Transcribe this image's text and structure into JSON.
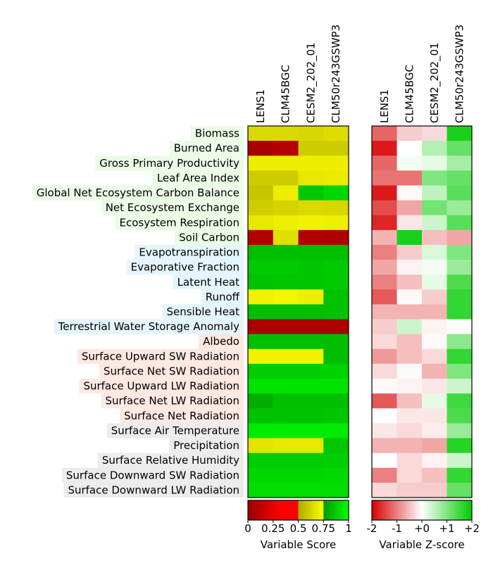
{
  "chart_data": [
    {
      "type": "heatmap",
      "title": "",
      "columns": [
        "LENS1",
        "CLM45BGC",
        "CESM2_202_01",
        "CLM50r243GSWP3"
      ],
      "rows": [
        {
          "label": "Biomass",
          "group": "ecosystem"
        },
        {
          "label": "Burned Area",
          "group": "ecosystem"
        },
        {
          "label": "Gross Primary Productivity",
          "group": "ecosystem"
        },
        {
          "label": "Leaf Area Index",
          "group": "ecosystem"
        },
        {
          "label": "Global Net Ecosystem Carbon Balance",
          "group": "ecosystem"
        },
        {
          "label": "Net Ecosystem Exchange",
          "group": "ecosystem"
        },
        {
          "label": "Ecosystem Respiration",
          "group": "ecosystem"
        },
        {
          "label": "Soil Carbon",
          "group": "ecosystem"
        },
        {
          "label": "Evapotranspiration",
          "group": "hydrology"
        },
        {
          "label": "Evaporative Fraction",
          "group": "hydrology"
        },
        {
          "label": "Latent Heat",
          "group": "hydrology"
        },
        {
          "label": "Runoff",
          "group": "hydrology"
        },
        {
          "label": "Sensible Heat",
          "group": "hydrology"
        },
        {
          "label": "Terrestrial Water Storage Anomaly",
          "group": "hydrology"
        },
        {
          "label": "Albedo",
          "group": "radiation"
        },
        {
          "label": "Surface Upward SW Radiation",
          "group": "radiation"
        },
        {
          "label": "Surface Net SW Radiation",
          "group": "radiation"
        },
        {
          "label": "Surface Upward LW Radiation",
          "group": "radiation"
        },
        {
          "label": "Surface Net LW Radiation",
          "group": "radiation"
        },
        {
          "label": "Surface Net Radiation",
          "group": "radiation"
        },
        {
          "label": "Surface Air Temperature",
          "group": "forcing"
        },
        {
          "label": "Precipitation",
          "group": "forcing"
        },
        {
          "label": "Surface Relative Humidity",
          "group": "forcing"
        },
        {
          "label": "Surface Downward SW Radiation",
          "group": "forcing"
        },
        {
          "label": "Surface Downward LW Radiation",
          "group": "forcing"
        }
      ],
      "group_colors": {
        "ecosystem": "#ecfbe6",
        "hydrology": "#e4f5fd",
        "radiation": "#fde8e2",
        "forcing": "#ececec"
      },
      "values": [
        [
          0.64,
          0.64,
          0.63,
          0.65
        ],
        [
          0.05,
          0.09,
          0.6,
          0.6
        ],
        [
          0.7,
          0.7,
          0.7,
          0.7
        ],
        [
          0.6,
          0.6,
          0.68,
          0.69
        ],
        [
          0.58,
          0.7,
          0.86,
          0.9
        ],
        [
          0.61,
          0.62,
          0.64,
          0.63
        ],
        [
          0.68,
          0.7,
          0.71,
          0.7
        ],
        [
          0.08,
          0.66,
          0.08,
          0.07
        ],
        [
          0.84,
          0.84,
          0.84,
          0.84
        ],
        [
          0.87,
          0.87,
          0.86,
          0.87
        ],
        [
          0.85,
          0.86,
          0.86,
          0.87
        ],
        [
          0.71,
          0.72,
          0.7,
          0.85
        ],
        [
          0.84,
          0.84,
          0.84,
          0.85
        ],
        [
          0.06,
          0.06,
          0.06,
          0.06
        ],
        [
          0.84,
          0.84,
          0.84,
          0.84
        ],
        [
          0.71,
          0.71,
          0.71,
          0.84
        ],
        [
          0.88,
          0.88,
          0.88,
          0.89
        ],
        [
          0.93,
          0.93,
          0.93,
          0.93
        ],
        [
          0.8,
          0.84,
          0.84,
          0.84
        ],
        [
          0.85,
          0.85,
          0.85,
          0.86
        ],
        [
          0.95,
          0.95,
          0.95,
          0.95
        ],
        [
          0.67,
          0.68,
          0.68,
          0.86
        ],
        [
          0.88,
          0.88,
          0.88,
          0.88
        ],
        [
          0.9,
          0.9,
          0.9,
          0.91
        ],
        [
          0.92,
          0.92,
          0.92,
          0.92
        ]
      ],
      "colorbar": {
        "label": "Variable Score",
        "ticks": [
          "0",
          "0.25",
          "0.5",
          "0.75",
          "1"
        ],
        "tick_values": [
          0,
          0.25,
          0.5,
          0.75,
          1.0
        ],
        "range": [
          0,
          1
        ],
        "stops": [
          {
            "v": 0.0,
            "c": "#990000"
          },
          {
            "v": 0.33,
            "c": "#ff0000"
          },
          {
            "v": 0.5,
            "c": "#ff0000"
          },
          {
            "v": 0.5,
            "c": "#aaaa00"
          },
          {
            "v": 0.75,
            "c": "#ffff00"
          },
          {
            "v": 0.75,
            "c": "#009900"
          },
          {
            "v": 1.0,
            "c": "#00ff00"
          }
        ]
      }
    },
    {
      "type": "heatmap",
      "title": "",
      "columns": [
        "LENS1",
        "CLM45BGC",
        "CESM2_202_01",
        "CLM50r243GSWP3"
      ],
      "values": [
        [
          -1.2,
          -0.4,
          -0.3,
          1.8
        ],
        [
          -1.8,
          0.0,
          0.6,
          1.2
        ],
        [
          -1.2,
          0.1,
          0.2,
          0.7
        ],
        [
          -1.1,
          -1.1,
          1.0,
          1.2
        ],
        [
          -1.8,
          -0.05,
          0.5,
          1.3
        ],
        [
          -1.4,
          -0.7,
          1.1,
          0.8
        ],
        [
          -1.7,
          -0.2,
          0.4,
          1.3
        ],
        [
          -0.6,
          1.8,
          -0.5,
          -0.7
        ],
        [
          -1.0,
          -0.4,
          0.3,
          1.0
        ],
        [
          -0.7,
          -0.1,
          0.1,
          0.8
        ],
        [
          -1.0,
          -0.5,
          0.2,
          1.4
        ],
        [
          -1.3,
          -0.05,
          -0.4,
          1.6
        ],
        [
          -0.6,
          -0.6,
          -0.6,
          1.6
        ],
        [
          -0.4,
          0.4,
          -0.1,
          0.02
        ],
        [
          -0.3,
          -0.5,
          -0.05,
          0.9
        ],
        [
          -0.8,
          -0.5,
          -0.3,
          1.6
        ],
        [
          -0.3,
          -0.05,
          -0.6,
          1.0
        ],
        [
          -0.05,
          -0.1,
          -0.2,
          0.4
        ],
        [
          -1.3,
          -0.5,
          0.2,
          1.5
        ],
        [
          0.0,
          -0.2,
          -0.2,
          1.4
        ],
        [
          -0.2,
          -0.3,
          -0.15,
          0.8
        ],
        [
          -0.6,
          -0.6,
          -0.7,
          1.7
        ],
        [
          0.0,
          -0.3,
          -0.1,
          0.4
        ],
        [
          -1.0,
          -0.3,
          -0.5,
          1.6
        ],
        [
          -0.3,
          -0.4,
          -0.4,
          1.2
        ]
      ],
      "colorbar": {
        "label": "Variable Z-score",
        "ticks": [
          "-2",
          "-1",
          "+0",
          "+1",
          "+2"
        ],
        "tick_values": [
          -2,
          -1,
          0,
          1,
          2
        ],
        "range": [
          -2,
          2
        ],
        "stops": [
          {
            "v": -2,
            "c": "#d70000"
          },
          {
            "v": 0,
            "c": "#ffffff"
          },
          {
            "v": 2,
            "c": "#00cc00"
          }
        ]
      }
    }
  ]
}
